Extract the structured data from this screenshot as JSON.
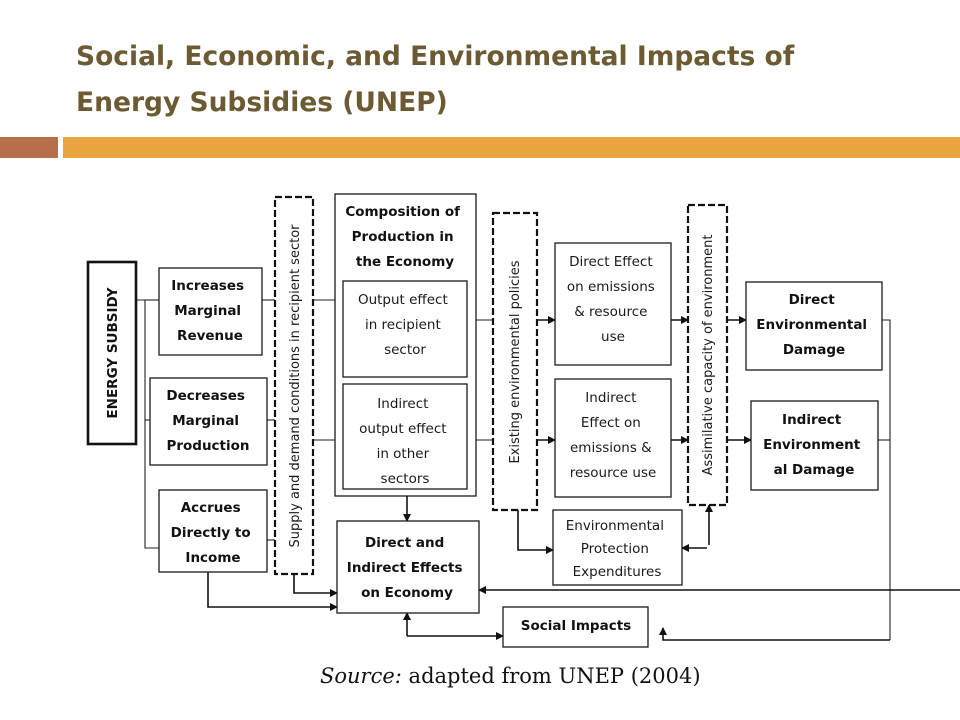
{
  "slide": {
    "title_line1": "Social, Economic, and Environmental Impacts of",
    "title_line2": "Energy Subsidies (UNEP)"
  },
  "diagram": {
    "energy_subsidy": "ENERGY SUBSIDY",
    "increases_revenue": [
      "Increases",
      "Marginal",
      "Revenue"
    ],
    "decreases_production": [
      "Decreases",
      "Marginal",
      "Production"
    ],
    "accrues_income": [
      "Accrues",
      "Directly to",
      "Income"
    ],
    "supply_demand": "Supply and demand conditions in recipient sector",
    "composition": [
      "Composition of",
      "Production in",
      "the Economy"
    ],
    "output_effect": [
      "Output effect",
      "in recipient",
      "sector"
    ],
    "indirect_output": [
      "Indirect",
      "output effect",
      "in other",
      "sectors"
    ],
    "existing_policies": "Existing environmental policies",
    "direct_emissions": [
      "Direct Effect",
      "on emissions",
      "& resource",
      "use"
    ],
    "indirect_emissions": [
      "Indirect",
      "Effect on",
      "emissions &",
      "resource use"
    ],
    "assimilative": "Assimilative capacity of environment",
    "direct_damage": [
      "Direct",
      "Environmental",
      "Damage"
    ],
    "indirect_damage": [
      "Indirect",
      "Environment",
      "al Damage"
    ],
    "env_expenditures": [
      "Environmental",
      "Protection",
      "Expenditures"
    ],
    "economy_effects": [
      "Direct and",
      "Indirect Effects",
      "on Economy"
    ],
    "social_impacts": "Social Impacts"
  },
  "source": {
    "prefix": "Source:",
    "text": "adapted from UNEP (2004)"
  },
  "colors": {
    "title": "#6b5a32",
    "bar_left": "#b5704b",
    "bar_right": "#e9a640"
  }
}
